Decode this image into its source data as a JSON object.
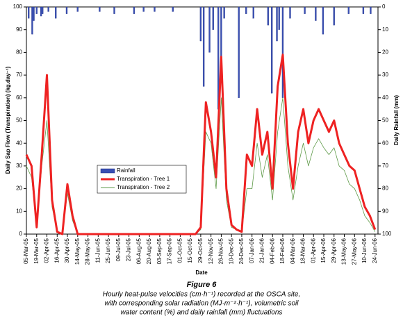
{
  "chart_data": {
    "type": "line",
    "xlabel": "Date",
    "ylabel": "Daily Sap Flow (Transpiration) (kg.day⁻¹)",
    "y2label": "Daily Rainfall (mm)",
    "caption_title": "Figure 6",
    "caption": [
      "Hourly heat-pulse velocities (cm·h⁻¹) recorded at the OSCA site,",
      "with corresponding solar radiation (MJ·m⁻²·h⁻¹), volumetric soil",
      "water content (%) and daily rainfall (mm) fluctuations"
    ],
    "xlim": [
      0,
      480
    ],
    "xticks": [
      {
        "value": 0,
        "label": "05-Mar-05"
      },
      {
        "value": 14,
        "label": "19-Mar-05"
      },
      {
        "value": 28,
        "label": "02-Apr-05"
      },
      {
        "value": 42,
        "label": "16-Apr-05"
      },
      {
        "value": 56,
        "label": "30-Apr-05"
      },
      {
        "value": 70,
        "label": "14-May-05"
      },
      {
        "value": 84,
        "label": "28-May-05"
      },
      {
        "value": 98,
        "label": "11-Jun-05"
      },
      {
        "value": 112,
        "label": "25-Jun-05"
      },
      {
        "value": 126,
        "label": "09-Jul-05"
      },
      {
        "value": 140,
        "label": "23-Jul-05"
      },
      {
        "value": 154,
        "label": "06-Aug-05"
      },
      {
        "value": 168,
        "label": "20-Aug-05"
      },
      {
        "value": 182,
        "label": "03-Sep-05"
      },
      {
        "value": 196,
        "label": "17-Sep-05"
      },
      {
        "value": 210,
        "label": "01-Oct-05"
      },
      {
        "value": 224,
        "label": "15-Oct-05"
      },
      {
        "value": 238,
        "label": "29-Oct-05"
      },
      {
        "value": 252,
        "label": "12-Nov-05"
      },
      {
        "value": 266,
        "label": "26-Nov-05"
      },
      {
        "value": 280,
        "label": "10-Dec-05"
      },
      {
        "value": 294,
        "label": "24-Dec-05"
      },
      {
        "value": 308,
        "label": "07-Jan-06"
      },
      {
        "value": 322,
        "label": "21-Jan-06"
      },
      {
        "value": 336,
        "label": "04-Feb-06"
      },
      {
        "value": 350,
        "label": "18-Feb-06"
      },
      {
        "value": 364,
        "label": "04-Mar-06"
      },
      {
        "value": 378,
        "label": "18-Mar-06"
      },
      {
        "value": 392,
        "label": "01-Apr-06"
      },
      {
        "value": 406,
        "label": "15-Apr-06"
      },
      {
        "value": 420,
        "label": "29-Apr-06"
      },
      {
        "value": 434,
        "label": "13-May-06"
      },
      {
        "value": 448,
        "label": "27-May-06"
      },
      {
        "value": 462,
        "label": "10-Jun-06"
      },
      {
        "value": 476,
        "label": "24-Jun-06"
      }
    ],
    "ylim": [
      0,
      100
    ],
    "yticks": [
      0,
      10,
      20,
      30,
      40,
      50,
      60,
      70,
      80,
      90,
      100
    ],
    "y2lim": [
      0,
      100
    ],
    "y2ticks": [
      0,
      10,
      20,
      30,
      40,
      50,
      60,
      70,
      80,
      90,
      100
    ],
    "y2_inverted": true,
    "x": [
      0,
      7,
      14,
      21,
      28,
      35,
      42,
      49,
      56,
      63,
      70,
      77,
      84,
      91,
      98,
      105,
      112,
      119,
      126,
      133,
      140,
      147,
      154,
      161,
      168,
      175,
      182,
      189,
      196,
      203,
      210,
      217,
      224,
      231,
      238,
      245,
      252,
      259,
      266,
      273,
      280,
      287,
      294,
      301,
      308,
      315,
      322,
      329,
      336,
      343,
      350,
      357,
      364,
      371,
      378,
      385,
      392,
      399,
      406,
      413,
      420,
      427,
      434,
      441,
      448,
      455,
      462,
      469,
      476
    ],
    "series": [
      {
        "name": "Rainfall",
        "type": "bar",
        "axis": "y2",
        "color": "#3a50b4",
        "x": [
          3,
          8,
          10,
          14,
          20,
          22,
          30,
          40,
          55,
          70,
          100,
          120,
          147,
          160,
          175,
          200,
          238,
          242,
          250,
          255,
          262,
          266,
          270,
          290,
          300,
          310,
          330,
          335,
          342,
          345,
          350,
          360,
          380,
          395,
          405,
          420,
          440,
          460,
          470
        ],
        "values": [
          5,
          12,
          6,
          3,
          4,
          3,
          2,
          5,
          3,
          2,
          2,
          3,
          3,
          2,
          2,
          2,
          15,
          35,
          20,
          10,
          45,
          25,
          5,
          40,
          3,
          5,
          8,
          38,
          15,
          10,
          40,
          5,
          3,
          6,
          12,
          8,
          3,
          3,
          3
        ]
      },
      {
        "name": "Transpiration - Tree 1",
        "color": "#ee2222",
        "values": [
          35,
          30,
          3,
          35,
          70,
          15,
          1,
          0,
          22,
          8,
          0,
          0,
          0,
          0,
          0,
          0,
          0,
          0,
          0,
          0,
          0,
          0,
          0,
          0,
          0,
          0,
          0,
          0,
          0,
          0,
          0,
          0,
          0,
          0,
          3,
          58,
          45,
          25,
          78,
          20,
          4,
          2,
          1,
          35,
          30,
          55,
          35,
          45,
          20,
          65,
          79,
          40,
          20,
          45,
          55,
          40,
          50,
          55,
          50,
          45,
          50,
          40,
          35,
          30,
          28,
          20,
          12,
          8,
          2
        ]
      },
      {
        "name": "Transpiration - Tree 2",
        "color": "#5e9a48",
        "values": [
          30,
          25,
          3,
          30,
          50,
          12,
          1,
          0,
          18,
          6,
          0,
          0,
          0,
          0,
          0,
          0,
          0,
          0,
          0,
          0,
          0,
          0,
          0,
          0,
          0,
          0,
          0,
          0,
          0,
          0,
          0,
          0,
          0,
          0,
          2,
          45,
          40,
          20,
          60,
          15,
          3,
          2,
          1,
          20,
          20,
          40,
          25,
          35,
          15,
          45,
          60,
          30,
          15,
          30,
          40,
          30,
          38,
          42,
          38,
          35,
          38,
          30,
          28,
          22,
          20,
          15,
          8,
          5,
          1
        ]
      }
    ]
  }
}
